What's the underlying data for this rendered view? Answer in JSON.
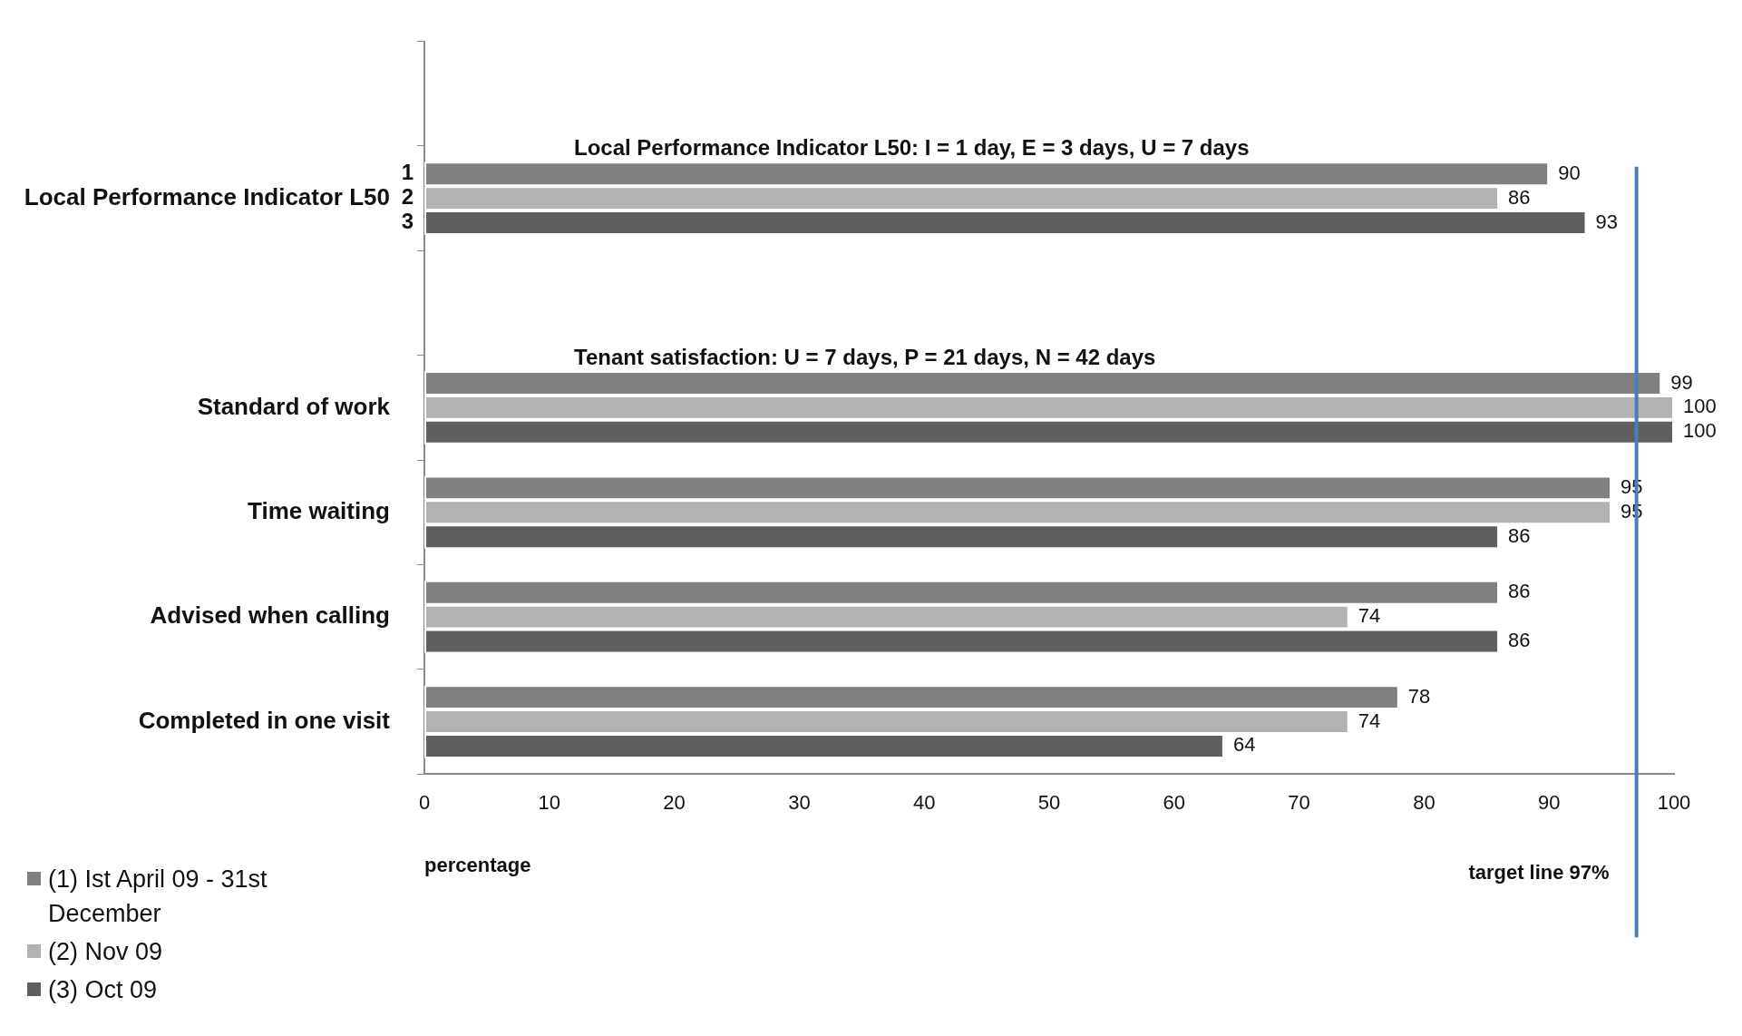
{
  "chart_data": {
    "type": "bar",
    "orientation": "horizontal",
    "xlabel": "percentage",
    "categories": [
      null,
      "Local Performance Indicator L50",
      null,
      "Standard of work",
      "Time waiting",
      "Advised when calling",
      "Completed in one visit"
    ],
    "series": [
      {
        "name": "(1) Ist April 09 - 31st December",
        "color": "#808080",
        "values": [
          null,
          90,
          null,
          99,
          95,
          86,
          78
        ]
      },
      {
        "name": "(2) Nov 09",
        "color": "#b2b2b2",
        "values": [
          null,
          86,
          null,
          100,
          95,
          74,
          74
        ]
      },
      {
        "name": "(3) Oct 09",
        "color": "#5f5f5f",
        "values": [
          null,
          93,
          null,
          100,
          86,
          86,
          64
        ]
      }
    ],
    "xlim": [
      0,
      100
    ],
    "xticks": [
      0,
      10,
      20,
      30,
      40,
      50,
      60,
      70,
      80,
      90,
      100
    ],
    "grid": false,
    "legend": "bottom left",
    "data_labels": true,
    "ref_lines": [
      {
        "axis": "x",
        "value": 97,
        "label": "target line 97%",
        "color": "#4a7ebb"
      }
    ],
    "annotations": [
      "Local Performance Indicator L50: I = 1 day, E = 3 days, U = 7 days",
      "Tenant satisfaction: U = 7 days, P = 21 days, N = 42 days",
      "1",
      "2",
      "3"
    ]
  }
}
